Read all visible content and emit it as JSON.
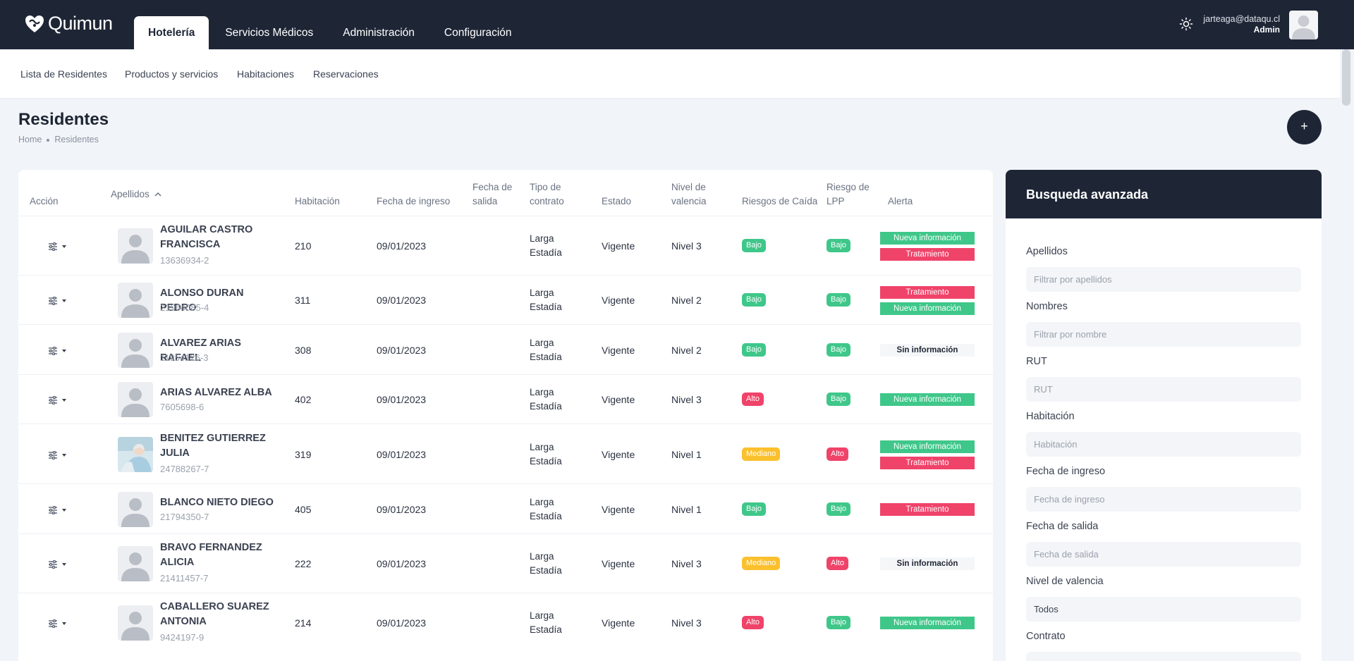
{
  "app": {
    "name": "Quimun"
  },
  "main_tabs": [
    {
      "label": "Hotelería",
      "active": true
    },
    {
      "label": "Servicios Médicos",
      "active": false
    },
    {
      "label": "Administración",
      "active": false
    },
    {
      "label": "Configuración",
      "active": false
    }
  ],
  "user": {
    "email": "jarteaga@dataqu.cl",
    "role": "Admin"
  },
  "sub_nav": [
    "Lista de Residentes",
    "Productos y servicios",
    "Habitaciones",
    "Reservaciones"
  ],
  "page": {
    "title": "Residentes",
    "breadcrumb": [
      "Home",
      "Residentes"
    ],
    "add_label": "+"
  },
  "table": {
    "headers": {
      "accion": "Acción",
      "apellidos": "Apellidos",
      "habitacion": "Habitación",
      "fecha_ingreso": "Fecha de ingreso",
      "fecha_salida_1": "Fecha de",
      "fecha_salida_2": "salida",
      "tipo_contrato_1": "Tipo de",
      "tipo_contrato_2": "contrato",
      "estado": "Estado",
      "nivel_valencia_1": "Nivel de",
      "nivel_valencia_2": "valencia",
      "riesgos_caida": "Riesgos de Caída",
      "riesgo_lpp_1": "Riesgo de",
      "riesgo_lpp_2": "LPP",
      "alerta": "Alerta"
    },
    "rows": [
      {
        "name1": "AGUILAR CASTRO",
        "name2": "FRANCISCA",
        "rut": "13636934-2",
        "room": "210",
        "ingreso": "09/01/2023",
        "contrato1": "Larga",
        "contrato2": "Estadía",
        "estado": "Vigente",
        "nivel": "Nivel 3",
        "caida": "Bajo",
        "lpp": "Bajo",
        "alerts": [
          {
            "text": "Nueva información",
            "color": "green"
          },
          {
            "text": "Tratamiento",
            "color": "red"
          }
        ]
      },
      {
        "name1": "ALONSO DURAN PEDRO",
        "name2": "",
        "rut": "21964085-4",
        "room": "311",
        "ingreso": "09/01/2023",
        "contrato1": "Larga",
        "contrato2": "Estadía",
        "estado": "Vigente",
        "nivel": "Nivel 2",
        "caida": "Bajo",
        "lpp": "Bajo",
        "alerts": [
          {
            "text": "Tratamiento",
            "color": "red"
          },
          {
            "text": "Nueva información",
            "color": "green"
          }
        ]
      },
      {
        "name1": "ALVAREZ ARIAS RAFAEL",
        "name2": "",
        "rut": "11954126-3",
        "room": "308",
        "ingreso": "09/01/2023",
        "contrato1": "Larga",
        "contrato2": "Estadía",
        "estado": "Vigente",
        "nivel": "Nivel 2",
        "caida": "Bajo",
        "lpp": "Bajo",
        "alerts": [
          {
            "text": "Sin información",
            "color": "gray"
          }
        ]
      },
      {
        "name1": "ARIAS ALVAREZ ALBA",
        "name2": "",
        "rut": "7605698-6",
        "room": "402",
        "ingreso": "09/01/2023",
        "contrato1": "Larga",
        "contrato2": "Estadía",
        "estado": "Vigente",
        "nivel": "Nivel 3",
        "caida": "Alto",
        "lpp": "Bajo",
        "alerts": [
          {
            "text": "Nueva información",
            "color": "green"
          }
        ]
      },
      {
        "name1": "BENITEZ GUTIERREZ",
        "name2": "JULIA",
        "rut": "24788267-7",
        "room": "319",
        "ingreso": "09/01/2023",
        "contrato1": "Larga",
        "contrato2": "Estadía",
        "estado": "Vigente",
        "nivel": "Nivel 1",
        "caida": "Mediano",
        "lpp": "Alto",
        "alerts": [
          {
            "text": "Nueva información",
            "color": "green"
          },
          {
            "text": "Tratamiento",
            "color": "red"
          }
        ]
      },
      {
        "name1": "BLANCO NIETO DIEGO",
        "name2": "",
        "rut": "21794350-7",
        "room": "405",
        "ingreso": "09/01/2023",
        "contrato1": "Larga",
        "contrato2": "Estadía",
        "estado": "Vigente",
        "nivel": "Nivel 1",
        "caida": "Bajo",
        "lpp": "Bajo",
        "alerts": [
          {
            "text": "Tratamiento",
            "color": "red"
          }
        ]
      },
      {
        "name1": "BRAVO FERNANDEZ",
        "name2": "ALICIA",
        "rut": "21411457-7",
        "room": "222",
        "ingreso": "09/01/2023",
        "contrato1": "Larga",
        "contrato2": "Estadía",
        "estado": "Vigente",
        "nivel": "Nivel 3",
        "caida": "Mediano",
        "lpp": "Alto",
        "alerts": [
          {
            "text": "Sin información",
            "color": "gray"
          }
        ]
      },
      {
        "name1": "CABALLERO SUAREZ",
        "name2": "ANTONIA",
        "rut": "9424197-9",
        "room": "214",
        "ingreso": "09/01/2023",
        "contrato1": "Larga",
        "contrato2": "Estadía",
        "estado": "Vigente",
        "nivel": "Nivel 3",
        "caida": "Alto",
        "lpp": "Bajo",
        "alerts": [
          {
            "text": "Nueva información",
            "color": "green"
          }
        ]
      }
    ]
  },
  "search": {
    "title": "Busqueda avanzada",
    "fields": [
      {
        "label": "Apellidos",
        "placeholder": "Filtrar por apellidos"
      },
      {
        "label": "Nombres",
        "placeholder": "Filtrar por nombre"
      },
      {
        "label": "RUT",
        "placeholder": "RUT"
      },
      {
        "label": "Habitación",
        "placeholder": "Habitación"
      },
      {
        "label": "Fecha de ingreso",
        "placeholder": "Fecha de ingreso"
      },
      {
        "label": "Fecha de salida",
        "placeholder": "Fecha de salida"
      }
    ],
    "nivel_label": "Nivel de valencia",
    "nivel_value": "Todos",
    "contrato_label": "Contrato"
  },
  "colors": {
    "navy": "#1e2636",
    "green": "#3fc78a",
    "red": "#f0436a",
    "yellow": "#fbc02d"
  },
  "icons": [
    "logo-icon",
    "sun-icon",
    "sort-up-icon",
    "sliders-icon",
    "caret-down-icon",
    "user-placeholder-icon",
    "resident-photo"
  ]
}
